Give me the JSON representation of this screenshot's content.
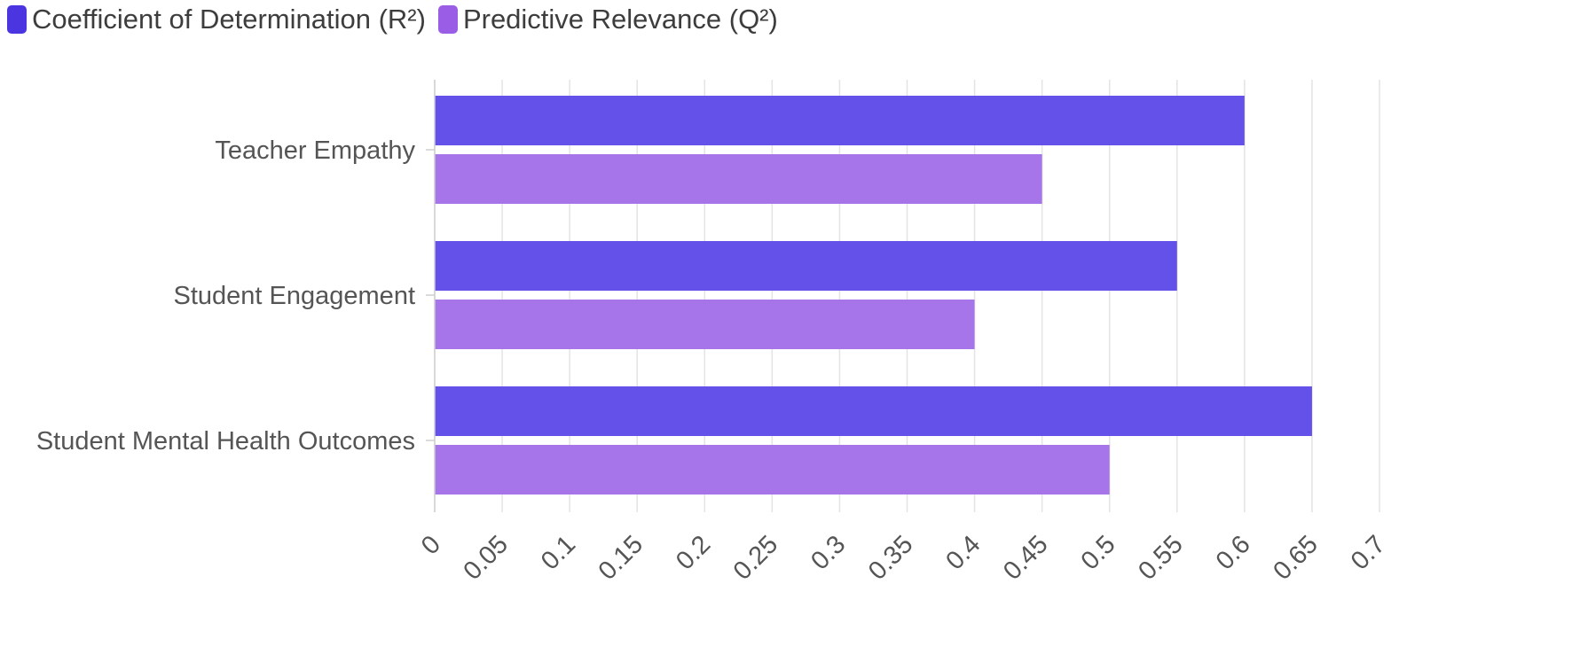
{
  "chart_data": {
    "type": "bar",
    "orientation": "horizontal",
    "categories": [
      "Teacher Empathy",
      "Student Engagement",
      "Student Mental Health Outcomes"
    ],
    "series": [
      {
        "name": "Coefficient of Determination (R²)",
        "values": [
          0.6,
          0.55,
          0.65
        ],
        "color": "#6351ea"
      },
      {
        "name": "Predictive Relevance (Q²)",
        "values": [
          0.45,
          0.4,
          0.5
        ],
        "color": "#a675e9"
      }
    ],
    "xlim": [
      0,
      0.7
    ],
    "xticks": [
      "0",
      "0.05",
      "0.1",
      "0.15",
      "0.2",
      "0.25",
      "0.3",
      "0.35",
      "0.4",
      "0.45",
      "0.5",
      "0.55",
      "0.6",
      "0.65",
      "0.7"
    ],
    "title": "",
    "xlabel": "",
    "ylabel": "",
    "grid": true,
    "legend_position": "top-left",
    "legend_swatch_colors": [
      "#4a35e0",
      "#9a5ee6"
    ]
  }
}
